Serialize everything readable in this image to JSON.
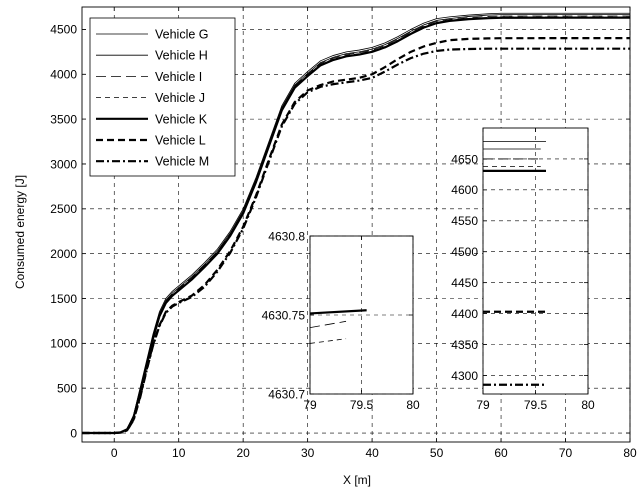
{
  "chart_data": [
    {
      "type": "line",
      "xlabel": "X [m]",
      "ylabel": "Consumed energy [J]",
      "xlim": [
        -5,
        80
      ],
      "ylim": [
        -100,
        4750
      ],
      "xticks": [
        0,
        10,
        20,
        30,
        40,
        50,
        60,
        70,
        80
      ],
      "yticks": [
        0,
        500,
        1000,
        1500,
        2000,
        2500,
        3000,
        3500,
        4000,
        4500
      ],
      "grid": true,
      "legend_position": "top-left",
      "series": [
        {
          "name": "Vehicle G",
          "style": "thin-solid",
          "x": [
            -5,
            0,
            1,
            2,
            3,
            4,
            5,
            6,
            7,
            8,
            9,
            10,
            12,
            14,
            16,
            18,
            20,
            22,
            24,
            26,
            28,
            30,
            32,
            34,
            36,
            38,
            40,
            42,
            44,
            46,
            48,
            50,
            52,
            55,
            58,
            60,
            70,
            80
          ],
          "y": [
            0,
            0,
            10,
            50,
            200,
            500,
            800,
            1100,
            1350,
            1500,
            1580,
            1640,
            1760,
            1900,
            2050,
            2250,
            2500,
            2850,
            3250,
            3650,
            3900,
            4030,
            4150,
            4210,
            4250,
            4270,
            4300,
            4350,
            4420,
            4500,
            4570,
            4620,
            4640,
            4660,
            4675,
            4680,
            4680,
            4680
          ]
        },
        {
          "name": "Vehicle H",
          "style": "thin-solid",
          "x": [
            -5,
            0,
            1,
            2,
            3,
            4,
            5,
            6,
            7,
            8,
            9,
            10,
            12,
            14,
            16,
            18,
            20,
            22,
            24,
            26,
            28,
            30,
            32,
            34,
            36,
            38,
            40,
            42,
            44,
            46,
            48,
            50,
            52,
            55,
            58,
            60,
            70,
            80
          ],
          "y": [
            0,
            0,
            10,
            45,
            190,
            480,
            780,
            1080,
            1330,
            1480,
            1560,
            1620,
            1740,
            1880,
            2030,
            2230,
            2480,
            2830,
            3230,
            3630,
            3880,
            4010,
            4130,
            4190,
            4230,
            4250,
            4280,
            4330,
            4400,
            4480,
            4550,
            4600,
            4620,
            4645,
            4660,
            4665,
            4665,
            4665
          ]
        },
        {
          "name": "Vehicle I",
          "style": "long-dash",
          "x": [
            -5,
            0,
            1,
            2,
            3,
            4,
            5,
            6,
            7,
            8,
            9,
            10,
            12,
            14,
            16,
            18,
            20,
            22,
            24,
            26,
            28,
            30,
            32,
            34,
            36,
            38,
            40,
            42,
            44,
            46,
            48,
            50,
            52,
            55,
            58,
            60,
            70,
            80
          ],
          "y": [
            0,
            0,
            10,
            45,
            185,
            470,
            770,
            1070,
            1320,
            1470,
            1550,
            1610,
            1730,
            1870,
            2020,
            2220,
            2470,
            2820,
            3220,
            3620,
            3870,
            4000,
            4120,
            4180,
            4220,
            4240,
            4270,
            4320,
            4390,
            4470,
            4540,
            4590,
            4610,
            4632,
            4645,
            4650,
            4650,
            4650
          ]
        },
        {
          "name": "Vehicle J",
          "style": "short-dash",
          "x": [
            -5,
            0,
            1,
            2,
            3,
            4,
            5,
            6,
            7,
            8,
            9,
            10,
            12,
            14,
            16,
            18,
            20,
            22,
            24,
            26,
            28,
            30,
            32,
            34,
            36,
            38,
            40,
            42,
            44,
            46,
            48,
            50,
            52,
            55,
            58,
            60,
            70,
            80
          ],
          "y": [
            0,
            0,
            10,
            40,
            180,
            460,
            760,
            1060,
            1310,
            1460,
            1540,
            1600,
            1720,
            1860,
            2010,
            2210,
            2460,
            2810,
            3210,
            3610,
            3860,
            3990,
            4110,
            4170,
            4210,
            4230,
            4260,
            4310,
            4380,
            4460,
            4530,
            4580,
            4600,
            4622,
            4633,
            4638,
            4638,
            4638
          ]
        },
        {
          "name": "Vehicle K",
          "style": "thick-solid",
          "x": [
            -5,
            0,
            1,
            2,
            3,
            4,
            5,
            6,
            7,
            8,
            9,
            10,
            12,
            14,
            16,
            18,
            20,
            22,
            24,
            26,
            28,
            30,
            32,
            34,
            36,
            38,
            40,
            42,
            44,
            46,
            48,
            50,
            52,
            55,
            58,
            60,
            70,
            80
          ],
          "y": [
            0,
            0,
            8,
            40,
            175,
            450,
            750,
            1050,
            1300,
            1450,
            1530,
            1590,
            1710,
            1850,
            2000,
            2200,
            2450,
            2800,
            3200,
            3600,
            3850,
            3980,
            4100,
            4160,
            4200,
            4220,
            4250,
            4300,
            4370,
            4450,
            4520,
            4570,
            4595,
            4615,
            4625,
            4630,
            4630.75,
            4630.75
          ]
        },
        {
          "name": "Vehicle L",
          "style": "thick-dash",
          "x": [
            -5,
            0,
            1,
            2,
            3,
            4,
            5,
            6,
            7,
            8,
            9,
            10,
            12,
            14,
            16,
            18,
            20,
            22,
            24,
            26,
            28,
            30,
            32,
            34,
            36,
            38,
            40,
            42,
            44,
            46,
            48,
            50,
            52,
            55,
            58,
            60,
            70,
            80
          ],
          "y": [
            0,
            0,
            5,
            30,
            150,
            400,
            700,
            980,
            1200,
            1350,
            1420,
            1460,
            1530,
            1650,
            1820,
            2030,
            2300,
            2650,
            3050,
            3440,
            3690,
            3820,
            3880,
            3920,
            3940,
            3960,
            4000,
            4080,
            4170,
            4250,
            4310,
            4350,
            4380,
            4395,
            4400,
            4402,
            4403,
            4403
          ]
        },
        {
          "name": "Vehicle M",
          "style": "thick-dash-dot",
          "x": [
            -5,
            0,
            1,
            2,
            3,
            4,
            5,
            6,
            7,
            8,
            9,
            10,
            12,
            14,
            16,
            18,
            20,
            22,
            24,
            26,
            28,
            30,
            32,
            34,
            36,
            38,
            40,
            42,
            44,
            46,
            48,
            50,
            52,
            55,
            58,
            60,
            70,
            80
          ],
          "y": [
            0,
            0,
            5,
            30,
            145,
            390,
            690,
            970,
            1190,
            1340,
            1410,
            1450,
            1515,
            1630,
            1800,
            2010,
            2280,
            2630,
            3030,
            3420,
            3670,
            3800,
            3860,
            3890,
            3910,
            3930,
            3960,
            4030,
            4110,
            4180,
            4230,
            4260,
            4275,
            4282,
            4285,
            4285,
            4285,
            4285
          ]
        }
      ]
    },
    {
      "type": "line",
      "xlim": [
        79,
        80
      ],
      "ylim": [
        4630.7,
        4630.8
      ],
      "xticks": [
        79,
        79.5,
        80
      ],
      "yticks": [
        4630.7,
        4630.75,
        4630.8
      ],
      "grid": true,
      "series": [
        {
          "name": "Vehicle K",
          "style": "thick-solid",
          "x": [
            79,
            79.55
          ],
          "y": [
            4630.751,
            4630.753
          ]
        },
        {
          "name": "Vehicle I",
          "style": "long-dash",
          "x": [
            79,
            79.35
          ],
          "y": [
            4630.742,
            4630.746
          ]
        },
        {
          "name": "Vehicle J",
          "style": "short-dash",
          "x": [
            79,
            79.35
          ],
          "y": [
            4630.732,
            4630.735
          ]
        }
      ]
    },
    {
      "type": "line",
      "xlim": [
        79,
        80
      ],
      "ylim": [
        4270,
        4700
      ],
      "xticks": [
        79,
        79.5,
        80
      ],
      "yticks": [
        4300,
        4350,
        4400,
        4450,
        4500,
        4550,
        4600,
        4650
      ],
      "grid": true,
      "series": [
        {
          "name": "Vehicle G",
          "style": "thin-solid",
          "x": [
            79,
            79.6
          ],
          "y": [
            4678,
            4678
          ]
        },
        {
          "name": "Vehicle H",
          "style": "thin-solid",
          "x": [
            79,
            79.55
          ],
          "y": [
            4666,
            4666
          ]
        },
        {
          "name": "Vehicle I",
          "style": "long-dash",
          "x": [
            79,
            79.55
          ],
          "y": [
            4650,
            4650
          ]
        },
        {
          "name": "Vehicle J",
          "style": "short-dash",
          "x": [
            79,
            79.55
          ],
          "y": [
            4638,
            4638
          ]
        },
        {
          "name": "Vehicle K",
          "style": "thick-solid",
          "x": [
            79,
            79.6
          ],
          "y": [
            4630.75,
            4630.75
          ]
        },
        {
          "name": "Vehicle L",
          "style": "thick-dash",
          "x": [
            79,
            79.6
          ],
          "y": [
            4403,
            4403
          ]
        },
        {
          "name": "Vehicle M",
          "style": "thick-dash-dot",
          "x": [
            79,
            79.6
          ],
          "y": [
            4285,
            4285
          ]
        }
      ]
    }
  ]
}
